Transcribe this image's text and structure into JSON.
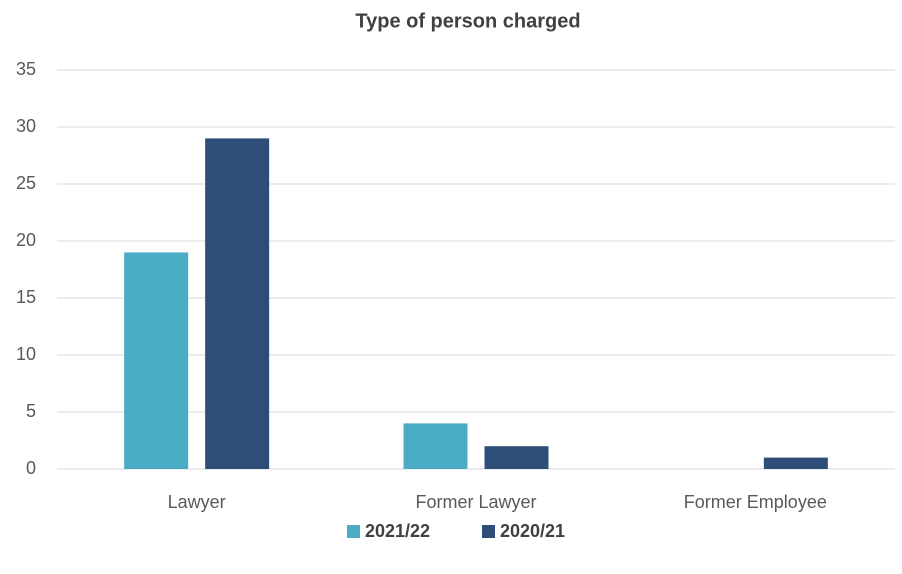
{
  "chart_data": {
    "type": "bar",
    "title": "Type of person charged",
    "categories": [
      "Lawyer",
      "Former Lawyer",
      "Former Employee"
    ],
    "series": [
      {
        "name": "2021/22",
        "color": "#4bacc6",
        "values": [
          19,
          4,
          0
        ]
      },
      {
        "name": "2020/21",
        "color": "#2e4e78",
        "values": [
          29,
          2,
          1
        ]
      }
    ],
    "ylim": [
      0,
      35
    ],
    "yticks": [
      0,
      5,
      10,
      15,
      20,
      25,
      30,
      35
    ],
    "grid": true,
    "legend": "bottom"
  }
}
